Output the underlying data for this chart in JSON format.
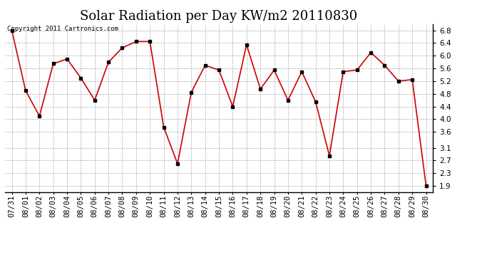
{
  "title": "Solar Radiation per Day KW/m2 20110830",
  "copyright_text": "Copyright 2011 Cartronics.com",
  "dates": [
    "07/31",
    "08/01",
    "08/02",
    "08/03",
    "08/04",
    "08/05",
    "08/06",
    "08/07",
    "08/08",
    "08/09",
    "08/10",
    "08/11",
    "08/12",
    "08/13",
    "08/14",
    "08/15",
    "08/16",
    "08/17",
    "08/18",
    "08/19",
    "08/20",
    "08/21",
    "08/22",
    "08/23",
    "08/24",
    "08/25",
    "08/26",
    "08/27",
    "08/28",
    "08/29",
    "08/30"
  ],
  "values": [
    6.8,
    4.9,
    4.1,
    5.75,
    5.9,
    5.3,
    4.6,
    5.8,
    6.25,
    6.45,
    6.45,
    3.75,
    2.6,
    4.85,
    5.7,
    5.55,
    4.4,
    6.35,
    4.95,
    5.55,
    4.6,
    5.5,
    4.55,
    2.85,
    5.5,
    5.55,
    6.1,
    5.7,
    5.2,
    5.25,
    1.9
  ],
  "line_color": "#cc0000",
  "marker_color": "#000000",
  "bg_color": "#ffffff",
  "grid_color": "#aaaaaa",
  "yticks": [
    1.9,
    2.3,
    2.7,
    3.1,
    3.6,
    4.0,
    4.4,
    4.8,
    5.2,
    5.6,
    6.0,
    6.4,
    6.8
  ],
  "ylim": [
    1.7,
    7.0
  ],
  "title_fontsize": 13,
  "tick_fontsize": 7.5,
  "copyright_fontsize": 6.5
}
